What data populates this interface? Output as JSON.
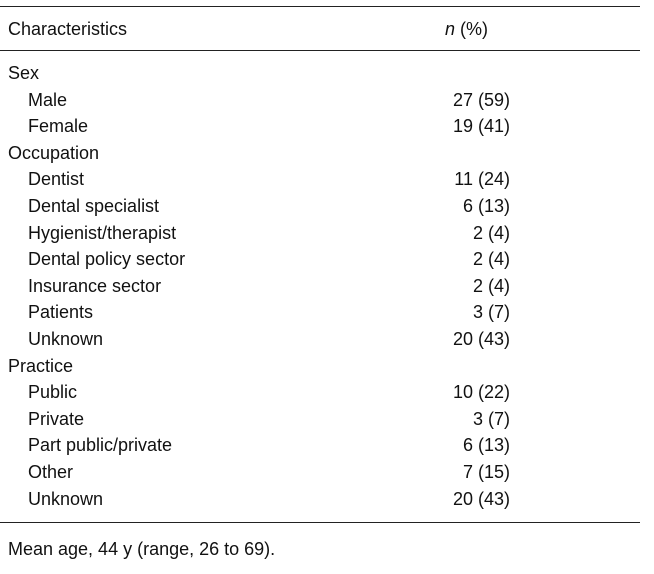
{
  "table": {
    "header": {
      "characteristics": "Characteristics",
      "n": "n",
      "percent": "(%)"
    },
    "rows": [
      {
        "type": "group",
        "label": "Sex",
        "value": ""
      },
      {
        "type": "item",
        "label": "Male",
        "value": "27 (59)"
      },
      {
        "type": "item",
        "label": "Female",
        "value": "19 (41)"
      },
      {
        "type": "group",
        "label": "Occupation",
        "value": ""
      },
      {
        "type": "item",
        "label": "Dentist",
        "value": "11 (24)"
      },
      {
        "type": "item",
        "label": "Dental specialist",
        "value": "6 (13)"
      },
      {
        "type": "item",
        "label": "Hygienist/therapist",
        "value": "2 (4)"
      },
      {
        "type": "item",
        "label": "Dental policy sector",
        "value": "2 (4)"
      },
      {
        "type": "item",
        "label": "Insurance sector",
        "value": "2 (4)"
      },
      {
        "type": "item",
        "label": "Patients",
        "value": "3 (7)"
      },
      {
        "type": "item",
        "label": "Unknown",
        "value": "20 (43)"
      },
      {
        "type": "group",
        "label": "Practice",
        "value": ""
      },
      {
        "type": "item",
        "label": "Public",
        "value": "10 (22)"
      },
      {
        "type": "item",
        "label": "Private",
        "value": "3 (7)"
      },
      {
        "type": "item",
        "label": "Part public/private",
        "value": "6 (13)"
      },
      {
        "type": "item",
        "label": "Other",
        "value": "7 (15)"
      },
      {
        "type": "item",
        "label": "Unknown",
        "value": "20 (43)"
      }
    ]
  },
  "footnote": "Mean age, 44 y (range, 26 to 69)."
}
